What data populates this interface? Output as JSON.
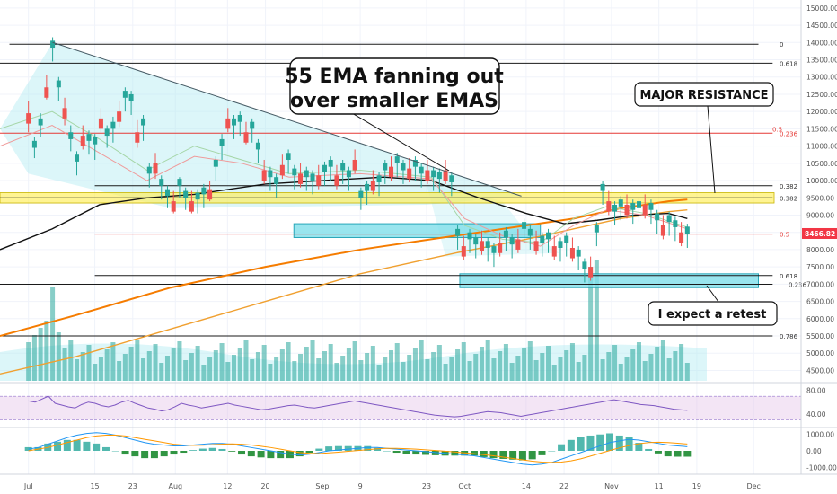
{
  "chart_data": {
    "type": "candlestick",
    "price_axis": {
      "ticks": [
        "15000.00",
        "14500.00",
        "14000.00",
        "13500.00",
        "13000.00",
        "12500.00",
        "12000.00",
        "11500.00",
        "11000.00",
        "10500.00",
        "10000.00",
        "9500.00",
        "9000.00",
        "8500.00",
        "8000.00",
        "7500.00",
        "7000.00",
        "6500.00",
        "6000.00",
        "5500.00",
        "5000.00",
        "4500.00"
      ],
      "range": [
        4200,
        15100
      ],
      "current_price": "8466.82",
      "current_price_value": 8466.82,
      "current_price_color": "#f23645"
    },
    "time_axis": {
      "labels": [
        "Jul",
        "15",
        "23",
        "Aug",
        "12",
        "20",
        "Sep",
        "9",
        "23",
        "Oct",
        "14",
        "22",
        "Nov",
        "11",
        "19",
        "Dec"
      ],
      "label_days": [
        0,
        14,
        22,
        31,
        42,
        50,
        62,
        70,
        84,
        92,
        105,
        113,
        123,
        133,
        141,
        153
      ],
      "range_days": [
        -6,
        163
      ]
    },
    "candles_ohlc": [
      [
        11950,
        12150,
        11700,
        11550
      ],
      [
        10950,
        11100,
        10850,
        10800
      ],
      [
        11600,
        11800,
        11450,
        11400
      ],
      [
        12700,
        12900,
        12550,
        12500
      ],
      [
        13850,
        14000,
        13700,
        13600
      ],
      [
        12700,
        12850,
        12550,
        12450
      ],
      [
        12100,
        12250,
        11900,
        11750
      ],
      [
        11200,
        11450,
        11100,
        11000
      ],
      [
        10550,
        10700,
        10400,
        10300
      ],
      [
        11300,
        11450,
        11200,
        11050
      ],
      [
        11150,
        11300,
        11000,
        10900
      ],
      [
        11050,
        11200,
        10900,
        10750
      ],
      [
        11800,
        11950,
        11650,
        11550
      ],
      [
        11300,
        11450,
        11150,
        11100
      ],
      [
        11500,
        11700,
        11350,
        11250
      ],
      [
        12000,
        12150,
        11850,
        11700
      ],
      [
        12400,
        12550,
        12300,
        12150
      ],
      [
        12300,
        12450,
        12150,
        12050
      ],
      [
        11400,
        11600,
        11250,
        11100
      ],
      [
        11600,
        11750,
        11450,
        11300
      ],
      [
        10200,
        10350,
        10100,
        9950
      ],
      [
        10500,
        10650,
        10350,
        10200
      ],
      [
        9850,
        10000,
        9700,
        9600
      ],
      [
        9550,
        9700,
        9450,
        9350
      ],
      [
        9400,
        9550,
        9300,
        9200
      ],
      [
        9850,
        9950,
        9700,
        9650
      ],
      [
        9500,
        9650,
        9400,
        9300
      ],
      [
        9400,
        9550,
        9300,
        9200
      ],
      [
        9450,
        9600,
        9300,
        9200
      ],
      [
        9600,
        9750,
        9450,
        9350
      ],
      [
        9750,
        9850,
        9650,
        9550
      ],
      [
        10400,
        10550,
        10300,
        10150
      ],
      [
        11000,
        11200,
        10900,
        10750
      ],
      [
        11800,
        11950,
        11650,
        11550
      ],
      [
        11600,
        11750,
        11450,
        11350
      ],
      [
        11700,
        11850,
        11550,
        11450
      ],
      [
        11400,
        11550,
        11300,
        11200
      ],
      [
        11500,
        11650,
        11350,
        11250
      ],
      [
        10900,
        11050,
        10800,
        10650
      ],
      [
        10300,
        10450,
        10200,
        10050
      ],
      [
        10100,
        10250,
        10000,
        9850
      ],
      [
        9900,
        10050,
        9800,
        9650
      ],
      [
        10450,
        10600,
        10350,
        10200
      ],
      [
        10600,
        10750,
        10500,
        10350
      ],
      [
        10150,
        10300,
        10000,
        9900
      ],
      [
        10200,
        10350,
        10050,
        9950
      ],
      [
        10100,
        10250,
        10000,
        9850
      ],
      [
        10000,
        10150,
        9900,
        9750
      ],
      [
        10150,
        10300,
        10050,
        9900
      ],
      [
        10250,
        10400,
        10150,
        10000
      ],
      [
        10400,
        10550,
        10300,
        10150
      ],
      [
        10150,
        10300,
        10050,
        9900
      ],
      [
        10300,
        10450,
        10200,
        10050
      ],
      [
        10100,
        10250,
        10000,
        9850
      ],
      [
        10600,
        10750,
        10500,
        10350
      ],
      [
        9500,
        9650,
        9400,
        9300
      ],
      [
        9700,
        9850,
        9600,
        9450
      ],
      [
        10000,
        10150,
        9900,
        9750
      ],
      [
        9950,
        10100,
        9850,
        9700
      ],
      [
        10300,
        10450,
        10200,
        10050
      ],
      [
        10400,
        10550,
        10300,
        10150
      ],
      [
        10500,
        10650,
        10400,
        10250
      ],
      [
        10300,
        10450,
        10200,
        10050
      ],
      [
        10350,
        10500,
        10250,
        10100
      ],
      [
        10400,
        10550,
        10300,
        10150
      ],
      [
        10200,
        10350,
        10100,
        9950
      ],
      [
        10300,
        10450,
        10200,
        10050
      ],
      [
        10100,
        10250,
        10000,
        9850
      ],
      [
        10050,
        10200,
        9950,
        9800
      ],
      [
        10300,
        10450,
        10150,
        10050
      ],
      [
        9950,
        10100,
        9850,
        9700
      ],
      [
        8400,
        8550,
        8300,
        8150
      ],
      [
        8100,
        8250,
        8000,
        7850
      ],
      [
        8300,
        8450,
        8200,
        8050
      ],
      [
        8150,
        8300,
        8050,
        7900
      ],
      [
        8250,
        8400,
        8150,
        8000
      ],
      [
        8050,
        8200,
        7950,
        7800
      ],
      [
        7900,
        8050,
        7800,
        7650
      ],
      [
        8200,
        8350,
        8100,
        7950
      ],
      [
        8350,
        8500,
        8250,
        8100
      ],
      [
        8150,
        8300,
        8050,
        7900
      ],
      [
        8300,
        8450,
        8200,
        8050
      ],
      [
        8600,
        8750,
        8500,
        8350
      ],
      [
        8400,
        8550,
        8300,
        8150
      ],
      [
        8250,
        8400,
        8150,
        8000
      ],
      [
        8200,
        8350,
        8100,
        7950
      ],
      [
        8300,
        8450,
        8200,
        8050
      ],
      [
        8100,
        8250,
        8000,
        7850
      ],
      [
        8050,
        8200,
        7950,
        7800
      ],
      [
        8200,
        8350,
        8100,
        7950
      ],
      [
        8050,
        8200,
        7950,
        7800
      ],
      [
        7800,
        7950,
        7700,
        7550
      ],
      [
        7450,
        7600,
        7350,
        7200
      ],
      [
        7500,
        7650,
        7400,
        7250
      ],
      [
        8500,
        8650,
        8400,
        8250
      ],
      [
        9700,
        9850,
        9600,
        9450
      ],
      [
        9400,
        9550,
        9300,
        9150
      ],
      [
        9100,
        9250,
        9000,
        8850
      ],
      [
        9250,
        9400,
        9150,
        9000
      ],
      [
        9300,
        9450,
        9200,
        9050
      ],
      [
        9150,
        9300,
        9050,
        8900
      ],
      [
        9200,
        9350,
        9100,
        8950
      ],
      [
        9300,
        9450,
        9200,
        9050
      ],
      [
        9150,
        9300,
        9050,
        8900
      ],
      [
        8850,
        9000,
        8750,
        8600
      ],
      [
        8700,
        8850,
        8600,
        8450
      ],
      [
        8800,
        8950,
        8700,
        8550
      ],
      [
        8650,
        8800,
        8550,
        8400
      ],
      [
        8500,
        8650,
        8400,
        8250
      ],
      [
        8466,
        8600,
        8350,
        8200
      ]
    ],
    "annotations": {
      "ema_note": "55 EMA fanning out\nover smaller EMAS",
      "resistance_note": "MAJOR RESISTANCE",
      "retest_note": "I expect a retest"
    },
    "fib_levels": [
      {
        "label": "0",
        "price": 13950
      },
      {
        "label": "0.618",
        "price": 13400
      },
      {
        "label": "0.5",
        "price": 11450
      },
      {
        "label": "0.236",
        "price": 11450
      },
      {
        "label": "0.382",
        "price": 9850
      },
      {
        "label": "0.382",
        "price": 9500
      },
      {
        "label": "0.5",
        "price": 8450
      },
      {
        "label": "0.618",
        "price": 7250
      },
      {
        "label": "0.236",
        "price": 7050
      },
      {
        "label": "0.786",
        "price": 5500
      }
    ],
    "rsi": {
      "ticks": [
        "80.00",
        "40.00"
      ],
      "values": [
        62,
        60,
        65,
        70,
        58,
        55,
        52,
        50,
        56,
        60,
        58,
        54,
        52,
        55,
        60,
        63,
        58,
        54,
        50,
        48,
        45,
        47,
        52,
        58,
        55,
        53,
        50,
        52,
        54,
        56,
        58,
        55,
        53,
        51,
        49,
        47,
        48,
        50,
        52,
        54,
        55,
        53,
        51,
        50,
        52,
        54,
        56,
        58,
        60,
        62,
        60,
        58,
        56,
        54,
        52,
        50,
        48,
        46,
        44,
        42,
        40,
        38,
        37,
        36,
        35,
        36,
        38,
        40,
        42,
        44,
        43,
        42,
        40,
        38,
        36,
        38,
        40,
        42,
        44,
        46,
        48,
        50,
        52,
        54,
        56,
        58,
        60,
        62,
        64,
        62,
        60,
        58,
        56,
        55,
        54,
        52,
        50,
        48,
        47,
        46
      ]
    },
    "macd": {
      "ticks": [
        "1000.00",
        "0.00",
        "-1000.00"
      ],
      "macd_line": [
        100,
        200,
        400,
        600,
        800,
        950,
        1050,
        1100,
        1050,
        950,
        800,
        650,
        500,
        400,
        350,
        300,
        300,
        350,
        400,
        450,
        450,
        400,
        300,
        200,
        100,
        0,
        -100,
        -200,
        -250,
        -200,
        -100,
        0,
        50,
        100,
        150,
        200,
        200,
        150,
        100,
        50,
        0,
        -50,
        -100,
        -150,
        -200,
        -250,
        -300,
        -400,
        -500,
        -600,
        -700,
        -800,
        -850,
        -800,
        -700,
        -500,
        -300,
        -100,
        100,
        300,
        500,
        600,
        700,
        650,
        550,
        450,
        350,
        300,
        250
      ],
      "signal_line": [
        0,
        100,
        200,
        350,
        500,
        650,
        800,
        900,
        950,
        950,
        900,
        800,
        700,
        600,
        500,
        400,
        350,
        330,
        340,
        370,
        400,
        420,
        400,
        350,
        280,
        200,
        100,
        0,
        -100,
        -150,
        -160,
        -120,
        -80,
        -30,
        20,
        70,
        120,
        150,
        150,
        130,
        100,
        60,
        20,
        -20,
        -70,
        -120,
        -170,
        -230,
        -300,
        -380,
        -460,
        -540,
        -620,
        -680,
        -700,
        -680,
        -600,
        -480,
        -320,
        -150,
        20,
        180,
        320,
        430,
        500,
        520,
        500,
        460,
        410
      ],
      "histogram": [
        100,
        100,
        200,
        250,
        300,
        300,
        250,
        200,
        100,
        0,
        -100,
        -150,
        -200,
        -200,
        -150,
        -100,
        -50,
        20,
        60,
        80,
        50,
        -20,
        -100,
        -150,
        -180,
        -200,
        -200,
        -200,
        -150,
        -50,
        60,
        120,
        130,
        130,
        130,
        130,
        80,
        0,
        -50,
        -80,
        -100,
        -110,
        -120,
        -130,
        -130,
        -130,
        -130,
        -170,
        -200,
        -220,
        -240,
        -260,
        -230,
        -120,
        0,
        180,
        300,
        380,
        420,
        450,
        480,
        420,
        380,
        220,
        50,
        -70,
        -150,
        -160,
        -160
      ]
    },
    "colors": {
      "up": "#26a69a",
      "down": "#ef5350",
      "ema_black": "#111111",
      "ema_orange": "#f57c00",
      "ema_light_orange": "#f0a030",
      "fib_line": "#1a1a1a",
      "fib_red": "#e53935",
      "zone_yellow": "#ffee58",
      "zone_blue": "#80deea"
    }
  }
}
